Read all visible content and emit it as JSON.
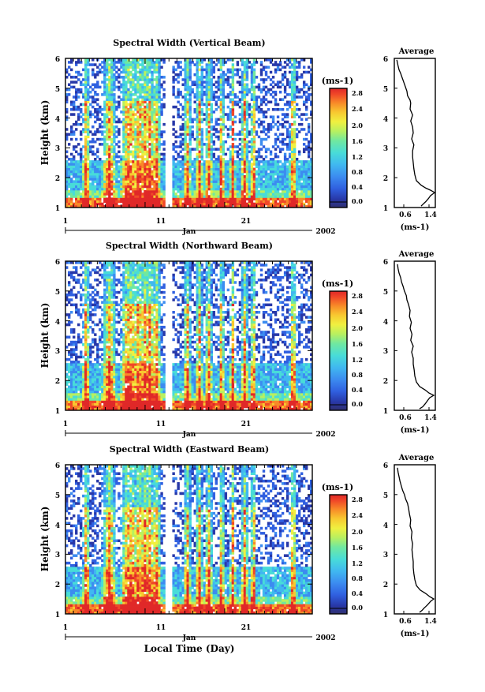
{
  "chart_data": [
    {
      "type": "heatmap",
      "title": "Spectral Width (Vertical Beam)",
      "ylabel": "Height (km)",
      "ylim": [
        1,
        6
      ],
      "y_ticks": [
        "1",
        "2",
        "3",
        "4",
        "5",
        "6"
      ],
      "x_ticks": [
        "1",
        "11",
        "21"
      ],
      "month_label": "Jan",
      "year_label": "2002",
      "colorbar": {
        "unit": "(ms-1)",
        "range": [
          0.0,
          2.8
        ],
        "ticks": [
          "0.0",
          "0.4",
          "0.8",
          "1.2",
          "1.6",
          "2.0",
          "2.4",
          "2.8"
        ]
      },
      "data_gap_days": [
        13.5,
        14.5
      ],
      "average_profile": {
        "title": "Average",
        "xlabel": "(ms-1)",
        "x_ticks": [
          "0.6",
          "1.4"
        ],
        "y_ticks": [
          "1",
          "2",
          "3",
          "4",
          "5",
          "6"
        ],
        "xlim": [
          0.3,
          1.6
        ],
        "ylim": [
          1,
          6
        ],
        "x": [
          1.15,
          1.2,
          1.3,
          1.38,
          1.45,
          1.58,
          1.45,
          1.3,
          1.15,
          1.0,
          0.95,
          0.92,
          0.9,
          0.88,
          0.88,
          0.92,
          0.85,
          0.9,
          0.88,
          0.82,
          0.88,
          0.8,
          0.82,
          0.8,
          0.72,
          0.7,
          0.65,
          0.6,
          0.55,
          0.5,
          0.45,
          0.42,
          0.4,
          0.38
        ],
        "y": [
          1.05,
          1.1,
          1.2,
          1.3,
          1.4,
          1.5,
          1.58,
          1.65,
          1.75,
          1.9,
          2.1,
          2.3,
          2.5,
          2.7,
          2.9,
          3.1,
          3.3,
          3.5,
          3.7,
          3.9,
          4.1,
          4.3,
          4.5,
          4.6,
          4.75,
          4.9,
          5.05,
          5.2,
          5.35,
          5.5,
          5.62,
          5.75,
          5.85,
          5.95
        ]
      }
    },
    {
      "type": "heatmap",
      "title": "Spectral Width (Northward Beam)",
      "ylabel": "Height (km)",
      "ylim": [
        1,
        6
      ],
      "y_ticks": [
        "1",
        "2",
        "3",
        "4",
        "5",
        "6"
      ],
      "x_ticks": [
        "1",
        "11",
        "21"
      ],
      "month_label": "Jan",
      "year_label": "2002",
      "colorbar": {
        "unit": "(ms-1)",
        "range": [
          0.0,
          2.8
        ],
        "ticks": [
          "0.0",
          "0.4",
          "0.8",
          "1.2",
          "1.6",
          "2.0",
          "2.4",
          "2.8"
        ]
      },
      "data_gap_days": [
        13.5,
        14.5
      ],
      "average_profile": {
        "title": "Average",
        "xlabel": "(ms-1)",
        "x_ticks": [
          "0.6",
          "1.4"
        ],
        "y_ticks": [
          "1",
          "2",
          "3",
          "4",
          "5",
          "6"
        ],
        "xlim": [
          0.3,
          1.6
        ],
        "ylim": [
          1,
          6
        ],
        "x": [
          1.1,
          1.2,
          1.28,
          1.35,
          1.42,
          1.55,
          1.4,
          1.28,
          1.1,
          1.0,
          0.95,
          0.93,
          0.9,
          0.9,
          0.85,
          0.9,
          0.82,
          0.86,
          0.8,
          0.84,
          0.78,
          0.8,
          0.75,
          0.7,
          0.68,
          0.62,
          0.58,
          0.53,
          0.5,
          0.45,
          0.42,
          0.4
        ],
        "y": [
          1.05,
          1.12,
          1.22,
          1.32,
          1.42,
          1.5,
          1.58,
          1.68,
          1.8,
          1.95,
          2.15,
          2.35,
          2.55,
          2.75,
          2.95,
          3.15,
          3.35,
          3.55,
          3.75,
          3.95,
          4.15,
          4.35,
          4.55,
          4.7,
          4.85,
          5.0,
          5.15,
          5.3,
          5.45,
          5.6,
          5.75,
          5.9
        ]
      }
    },
    {
      "type": "heatmap",
      "title": "Spectral Width (Eastward Beam)",
      "ylabel": "Height (km)",
      "xlabel": "Local Time (Day)",
      "ylim": [
        1,
        6
      ],
      "y_ticks": [
        "1",
        "2",
        "3",
        "4",
        "5",
        "6"
      ],
      "x_ticks": [
        "1",
        "11",
        "21"
      ],
      "month_label": "Jan",
      "year_label": "2002",
      "colorbar": {
        "unit": "(ms-1)",
        "range": [
          0.0,
          2.8
        ],
        "ticks": [
          "0.0",
          "0.4",
          "0.8",
          "1.2",
          "1.6",
          "2.0",
          "2.4",
          "2.8"
        ]
      },
      "data_gap_days": [
        13.5,
        14.5
      ],
      "average_profile": {
        "title": "Average",
        "xlabel": "(ms-1)",
        "x_ticks": [
          "0.6",
          "1.4"
        ],
        "y_ticks": [
          "1",
          "2",
          "3",
          "4",
          "5",
          "6"
        ],
        "xlim": [
          0.3,
          1.6
        ],
        "ylim": [
          1,
          6
        ],
        "x": [
          1.1,
          1.18,
          1.25,
          1.35,
          1.45,
          1.55,
          1.42,
          1.3,
          1.12,
          1.0,
          0.95,
          0.92,
          0.9,
          0.9,
          0.88,
          0.86,
          0.88,
          0.84,
          0.86,
          0.8,
          0.82,
          0.78,
          0.75,
          0.72,
          0.66,
          0.62,
          0.56,
          0.52,
          0.48,
          0.45,
          0.42,
          0.4
        ],
        "y": [
          1.05,
          1.12,
          1.2,
          1.3,
          1.42,
          1.5,
          1.58,
          1.68,
          1.8,
          1.95,
          2.15,
          2.35,
          2.55,
          2.75,
          2.95,
          3.15,
          3.35,
          3.55,
          3.75,
          3.95,
          4.15,
          4.35,
          4.55,
          4.7,
          4.85,
          5.0,
          5.15,
          5.3,
          5.45,
          5.6,
          5.75,
          5.9
        ]
      }
    }
  ]
}
